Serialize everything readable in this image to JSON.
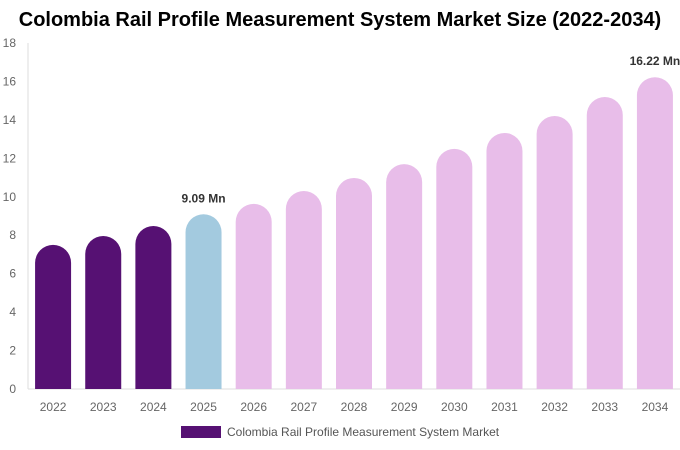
{
  "chart_data": {
    "type": "bar",
    "title": "Colombia Rail Profile Measurement System Market Size (2022-2034)",
    "categories": [
      "2022",
      "2023",
      "2024",
      "2025",
      "2026",
      "2027",
      "2028",
      "2029",
      "2030",
      "2031",
      "2032",
      "2033",
      "2034"
    ],
    "series": [
      {
        "name": "Colombia Rail Profile Measurement System Market",
        "values": [
          7.5,
          7.96,
          8.48,
          9.09,
          9.63,
          10.3,
          10.98,
          11.7,
          12.49,
          13.32,
          14.2,
          15.19,
          16.22
        ]
      }
    ],
    "bar_colors": [
      "#561173",
      "#561173",
      "#561173",
      "#a3cadf",
      "#e8bde9",
      "#e8bde9",
      "#e8bde9",
      "#e8bde9",
      "#e8bde9",
      "#e8bde9",
      "#e8bde9",
      "#e8bde9",
      "#e8bde9"
    ],
    "data_labels": [
      {
        "index": 3,
        "text": "9.09 Mn"
      },
      {
        "index": 12,
        "text": "16.22 Mn"
      }
    ],
    "ylim": [
      0,
      18
    ],
    "yticks": [
      0,
      2,
      4,
      6,
      8,
      10,
      12,
      14,
      16,
      18
    ],
    "grid": false,
    "legend_position": "bottom"
  }
}
